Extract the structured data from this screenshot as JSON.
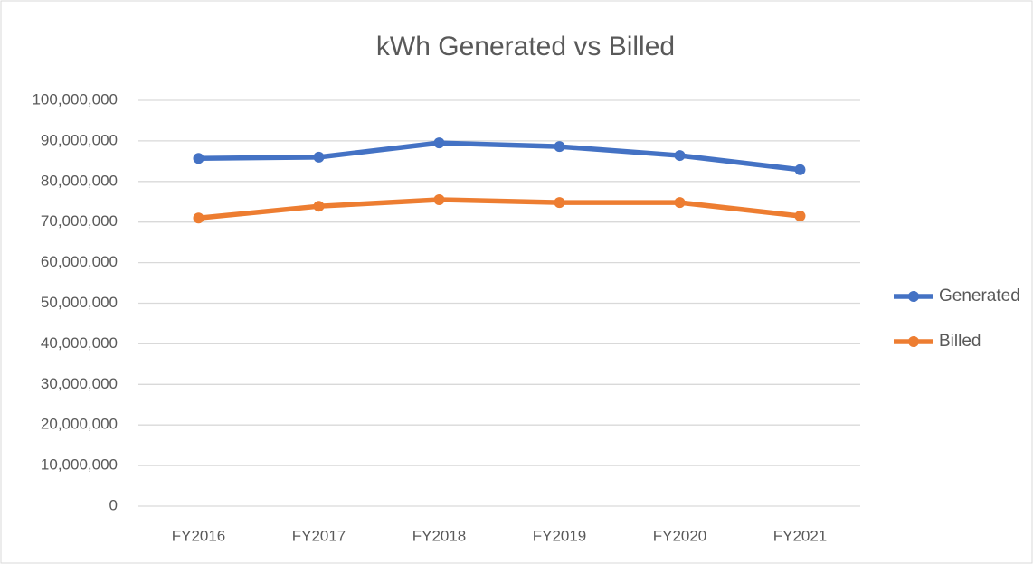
{
  "chart_data": {
    "type": "line",
    "title": "kWh Generated vs Billed",
    "categories": [
      "FY2016",
      "FY2017",
      "FY2018",
      "FY2019",
      "FY2020",
      "FY2021"
    ],
    "series": [
      {
        "name": "Generated",
        "color": "#4472c4",
        "values": [
          85700000,
          86000000,
          89500000,
          88600000,
          86400000,
          82900000
        ]
      },
      {
        "name": "Billed",
        "color": "#ed7d31",
        "values": [
          71000000,
          73900000,
          75500000,
          74800000,
          74800000,
          71500000
        ]
      }
    ],
    "ylim": [
      0,
      100000000
    ],
    "yticks": [
      0,
      {
        "value": 10000000,
        "label": "10,000,000"
      },
      {
        "value": 20000000,
        "label": "20,000,000"
      },
      {
        "value": 30000000,
        "label": "30,000,000"
      },
      {
        "value": 40000000,
        "label": "40,000,000"
      },
      {
        "value": 50000000,
        "label": "50,000,000"
      },
      {
        "value": 60000000,
        "label": "60,000,000"
      },
      {
        "value": 70000000,
        "label": "70,000,000"
      },
      {
        "value": 80000000,
        "label": "80,000,000"
      },
      {
        "value": 90000000,
        "label": "90,000,000"
      },
      {
        "value": 100000000,
        "label": "100,000,000"
      }
    ],
    "grid": true,
    "legend": "right"
  }
}
